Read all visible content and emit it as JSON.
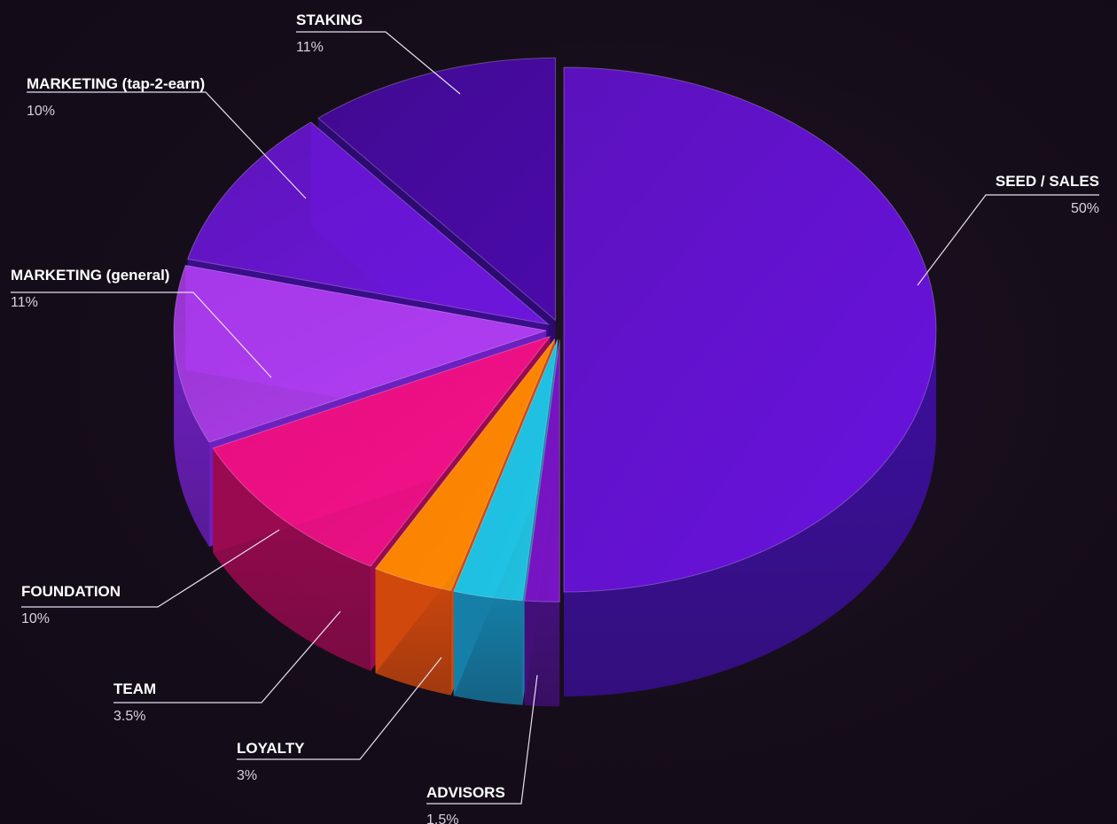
{
  "chart_data": {
    "type": "pie",
    "style": "3d-exploded",
    "legend": "leader-line-labels",
    "slices": [
      {
        "label": "SEED / SALES",
        "value": 50,
        "value_label": "50%",
        "color": "#6a12e0",
        "side_color": "#3c0f9e"
      },
      {
        "label": "ADVISORS",
        "value": 1.5,
        "value_label": "1.5%",
        "color": "#7a14c8",
        "side_color": "#43107a"
      },
      {
        "label": "LOYALTY",
        "value": 3,
        "value_label": "3%",
        "color": "#20c6e6",
        "side_color": "#157fa8"
      },
      {
        "label": "TEAM",
        "value": 3.5,
        "value_label": "3.5%",
        "color": "#ff8a00",
        "side_color": "#d0480c"
      },
      {
        "label": "FOUNDATION",
        "value": 10,
        "value_label": "10%",
        "color": "#f5108a",
        "side_color": "#9a0a50"
      },
      {
        "label": "MARKETING (general)",
        "value": 11,
        "value_label": "11%",
        "color": "#b13ef2",
        "side_color": "#6e1fc0"
      },
      {
        "label": "MARKETING (tap-2-earn)",
        "value": 10,
        "value_label": "10%",
        "color": "#6d16dc",
        "side_color": "#3a0d8a"
      },
      {
        "label": "STAKING",
        "value": 11,
        "value_label": "11%",
        "color": "#4a0aaa",
        "side_color": "#2d0a72"
      }
    ]
  }
}
